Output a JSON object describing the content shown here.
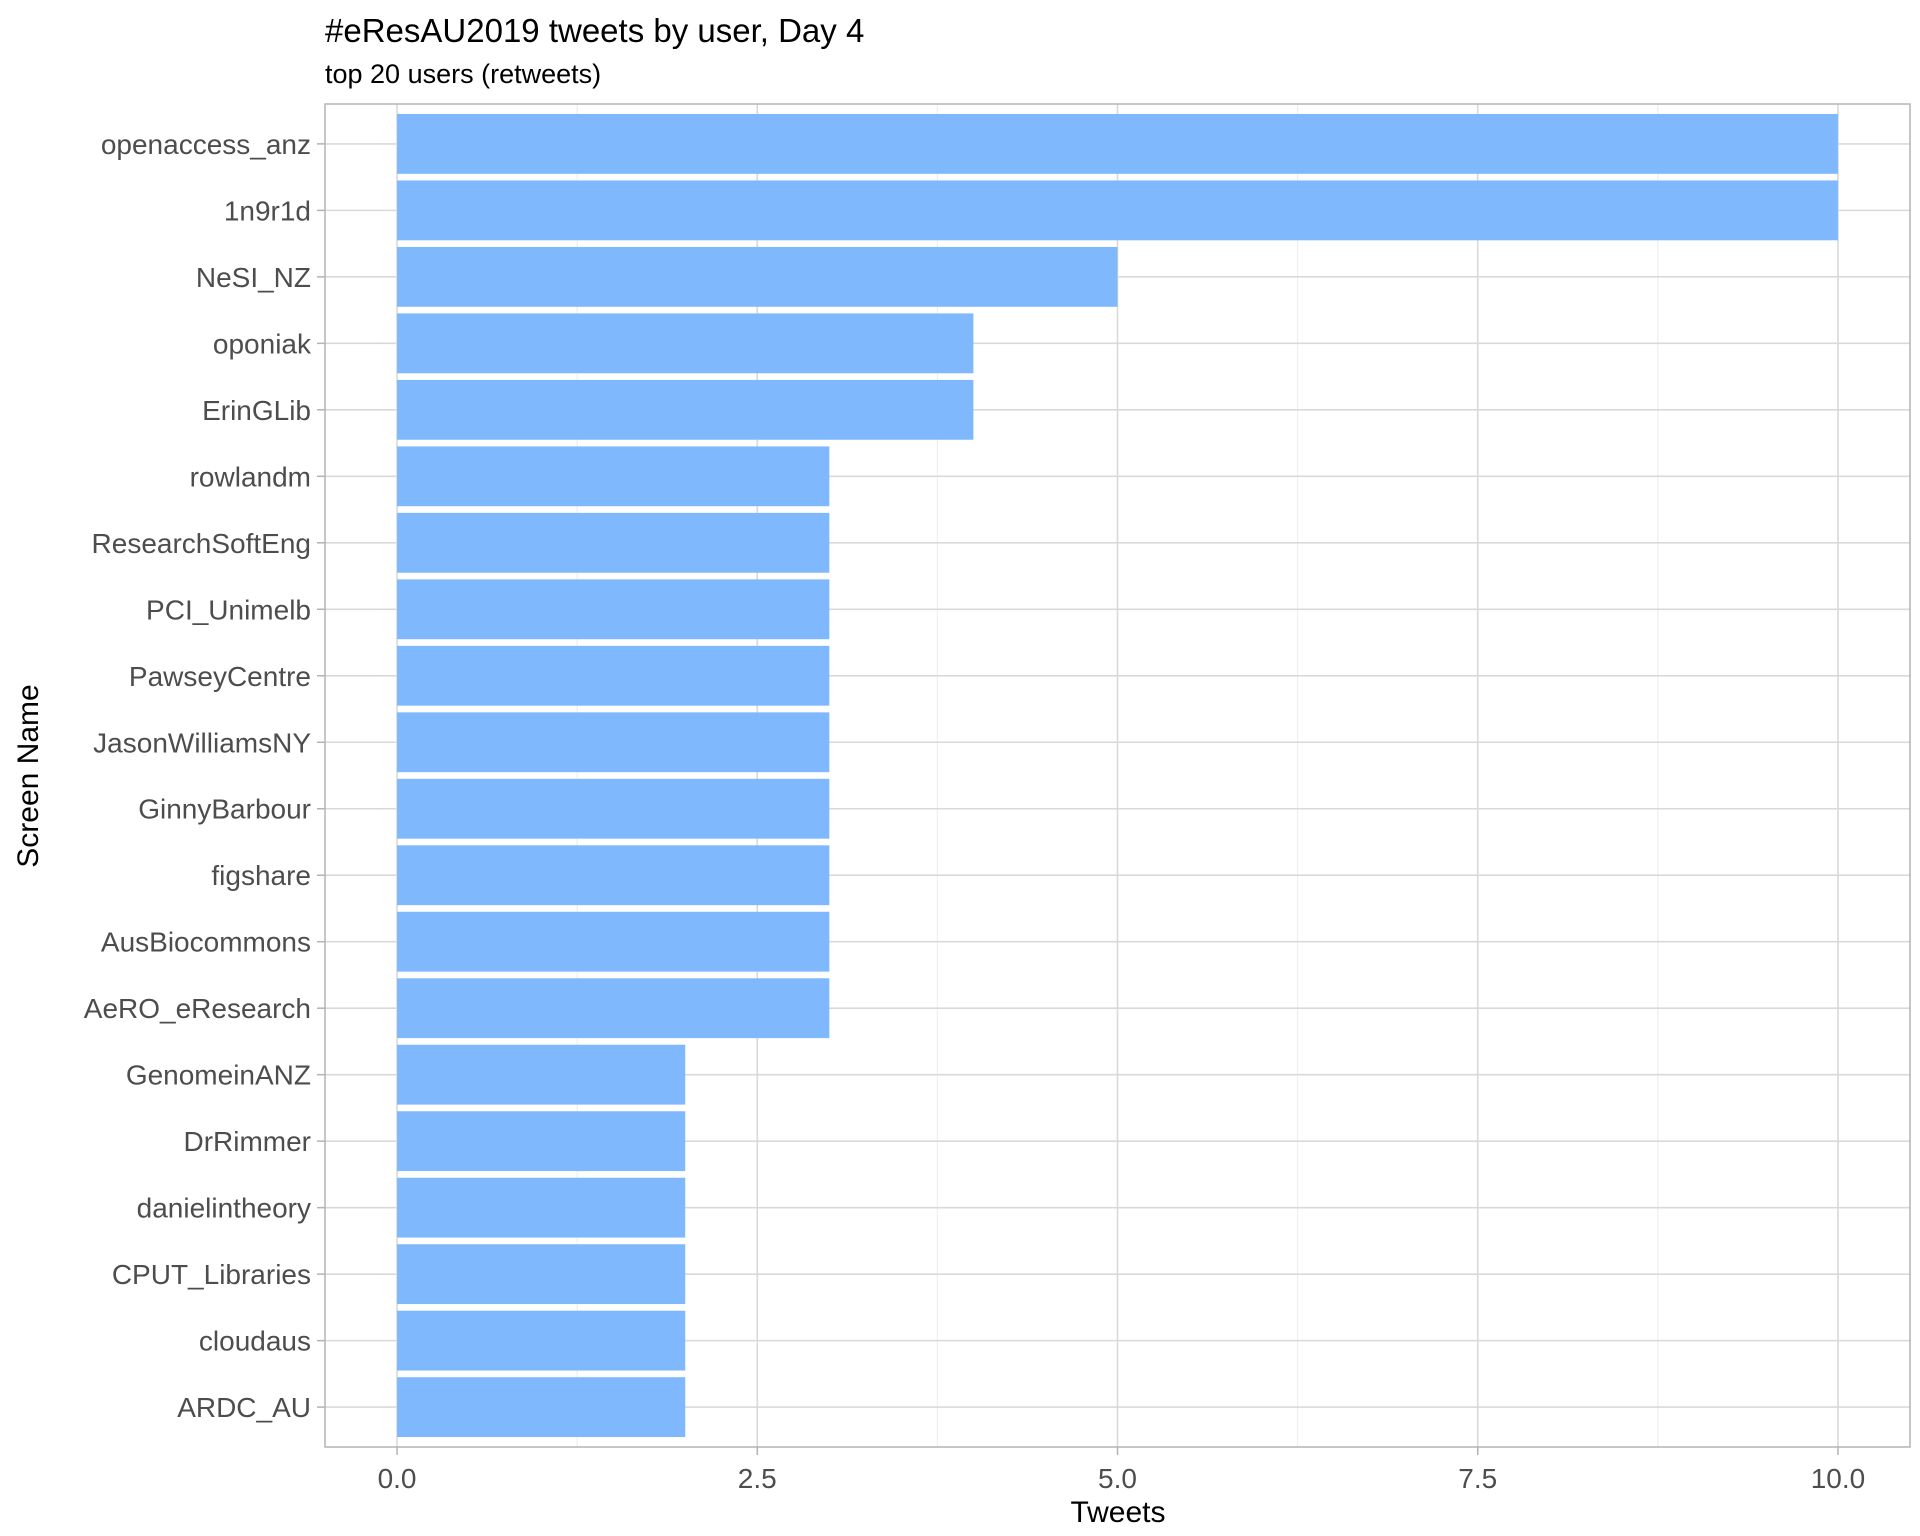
{
  "chart_data": {
    "type": "bar",
    "orientation": "horizontal",
    "title": "#eResAU2019 tweets by user, Day 4",
    "subtitle": "top 20 users (retweets)",
    "xlabel": "Tweets",
    "ylabel": "Screen Name",
    "xlim": [
      -0.5,
      10.5
    ],
    "xticks": [
      0,
      2.5,
      5,
      7.5,
      10
    ],
    "xtick_labels": [
      "0.0",
      "2.5",
      "5.0",
      "7.5",
      "10.0"
    ],
    "grid": true,
    "bar_color": "#7fb8fd",
    "categories": [
      "openaccess_anz",
      "1n9r1d",
      "NeSI_NZ",
      "oponiak",
      "ErinGLib",
      "rowlandm",
      "ResearchSoftEng",
      "PCI_Unimelb",
      "PawseyCentre",
      "JasonWilliamsNY",
      "GinnyBarbour",
      "figshare",
      "AusBiocommons",
      "AeRO_eResearch",
      "GenomeinANZ",
      "DrRimmer",
      "danielintheory",
      "CPUT_Libraries",
      "cloudaus",
      "ARDC_AU"
    ],
    "values": [
      10,
      10,
      5,
      4,
      4,
      3,
      3,
      3,
      3,
      3,
      3,
      3,
      3,
      3,
      2,
      2,
      2,
      2,
      2,
      2
    ]
  }
}
